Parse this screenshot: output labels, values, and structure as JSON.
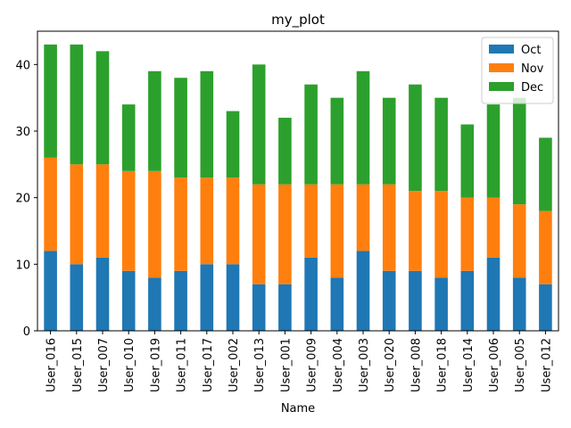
{
  "chart_data": {
    "type": "bar",
    "stacked": true,
    "title": "my_plot",
    "xlabel": "Name",
    "ylabel": "",
    "ylim": [
      0,
      45
    ],
    "yticks": [
      0,
      10,
      20,
      30,
      40
    ],
    "grid": false,
    "legend_position": "top-right",
    "categories": [
      "User_016",
      "User_015",
      "User_007",
      "User_010",
      "User_019",
      "User_011",
      "User_017",
      "User_002",
      "User_013",
      "User_001",
      "User_009",
      "User_004",
      "User_003",
      "User_020",
      "User_008",
      "User_018",
      "User_014",
      "User_006",
      "User_005",
      "User_012"
    ],
    "series": [
      {
        "name": "Oct",
        "color": "#1f77b4",
        "values": [
          12,
          10,
          11,
          9,
          8,
          9,
          10,
          10,
          7,
          7,
          11,
          8,
          12,
          9,
          9,
          8,
          9,
          11,
          8,
          7
        ]
      },
      {
        "name": "Nov",
        "color": "#ff7f0e",
        "values": [
          14,
          15,
          14,
          15,
          16,
          14,
          13,
          13,
          15,
          15,
          11,
          14,
          10,
          13,
          12,
          13,
          11,
          9,
          11,
          11
        ]
      },
      {
        "name": "Dec",
        "color": "#2ca02c",
        "values": [
          17,
          18,
          17,
          10,
          15,
          15,
          16,
          10,
          18,
          10,
          15,
          13,
          17,
          13,
          16,
          14,
          11,
          14,
          16,
          11
        ]
      }
    ]
  }
}
